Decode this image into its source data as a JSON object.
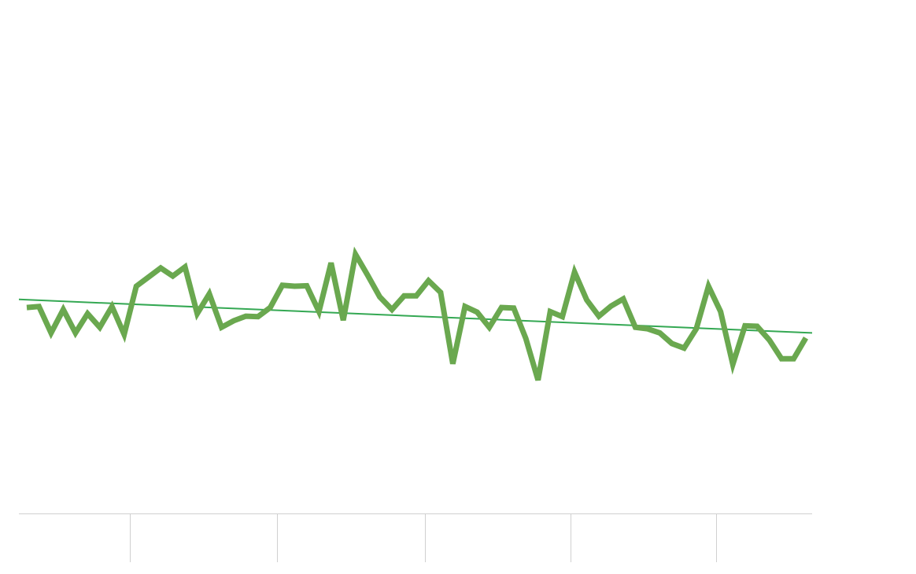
{
  "chart_data": {
    "type": "line",
    "title": "",
    "xlabel": "",
    "ylabel": "",
    "grid": false,
    "legend": "none",
    "ylim": [
      0,
      100
    ],
    "series": [
      {
        "color": "#6aa84f",
        "values": [
          40.6,
          40.8,
          35.6,
          40.2,
          35.6,
          39.4,
          36.7,
          40.8,
          35.3,
          44.8,
          46.6,
          48.4,
          46.8,
          48.6,
          39.4,
          43.3,
          36.7,
          38.0,
          38.9,
          38.8,
          40.6,
          45.0,
          44.8,
          44.9,
          39.8,
          49.4,
          38.1,
          51.1,
          47.0,
          42.7,
          40.2,
          42.9,
          42.9,
          45.9,
          43.6,
          29.5,
          40.8,
          39.7,
          36.7,
          40.6,
          40.5,
          34.5,
          26.3,
          39.8,
          38.8,
          47.6,
          42.1,
          38.9,
          40.9,
          42.3,
          36.7,
          36.4,
          35.6,
          33.5,
          32.6,
          36.4,
          44.8,
          39.8,
          29.4,
          37.0,
          36.9,
          34.2,
          30.5,
          30.5,
          34.6
        ],
        "trendline": {
          "color": "#34a853",
          "start": 42.2,
          "end": 35.6
        }
      }
    ]
  }
}
